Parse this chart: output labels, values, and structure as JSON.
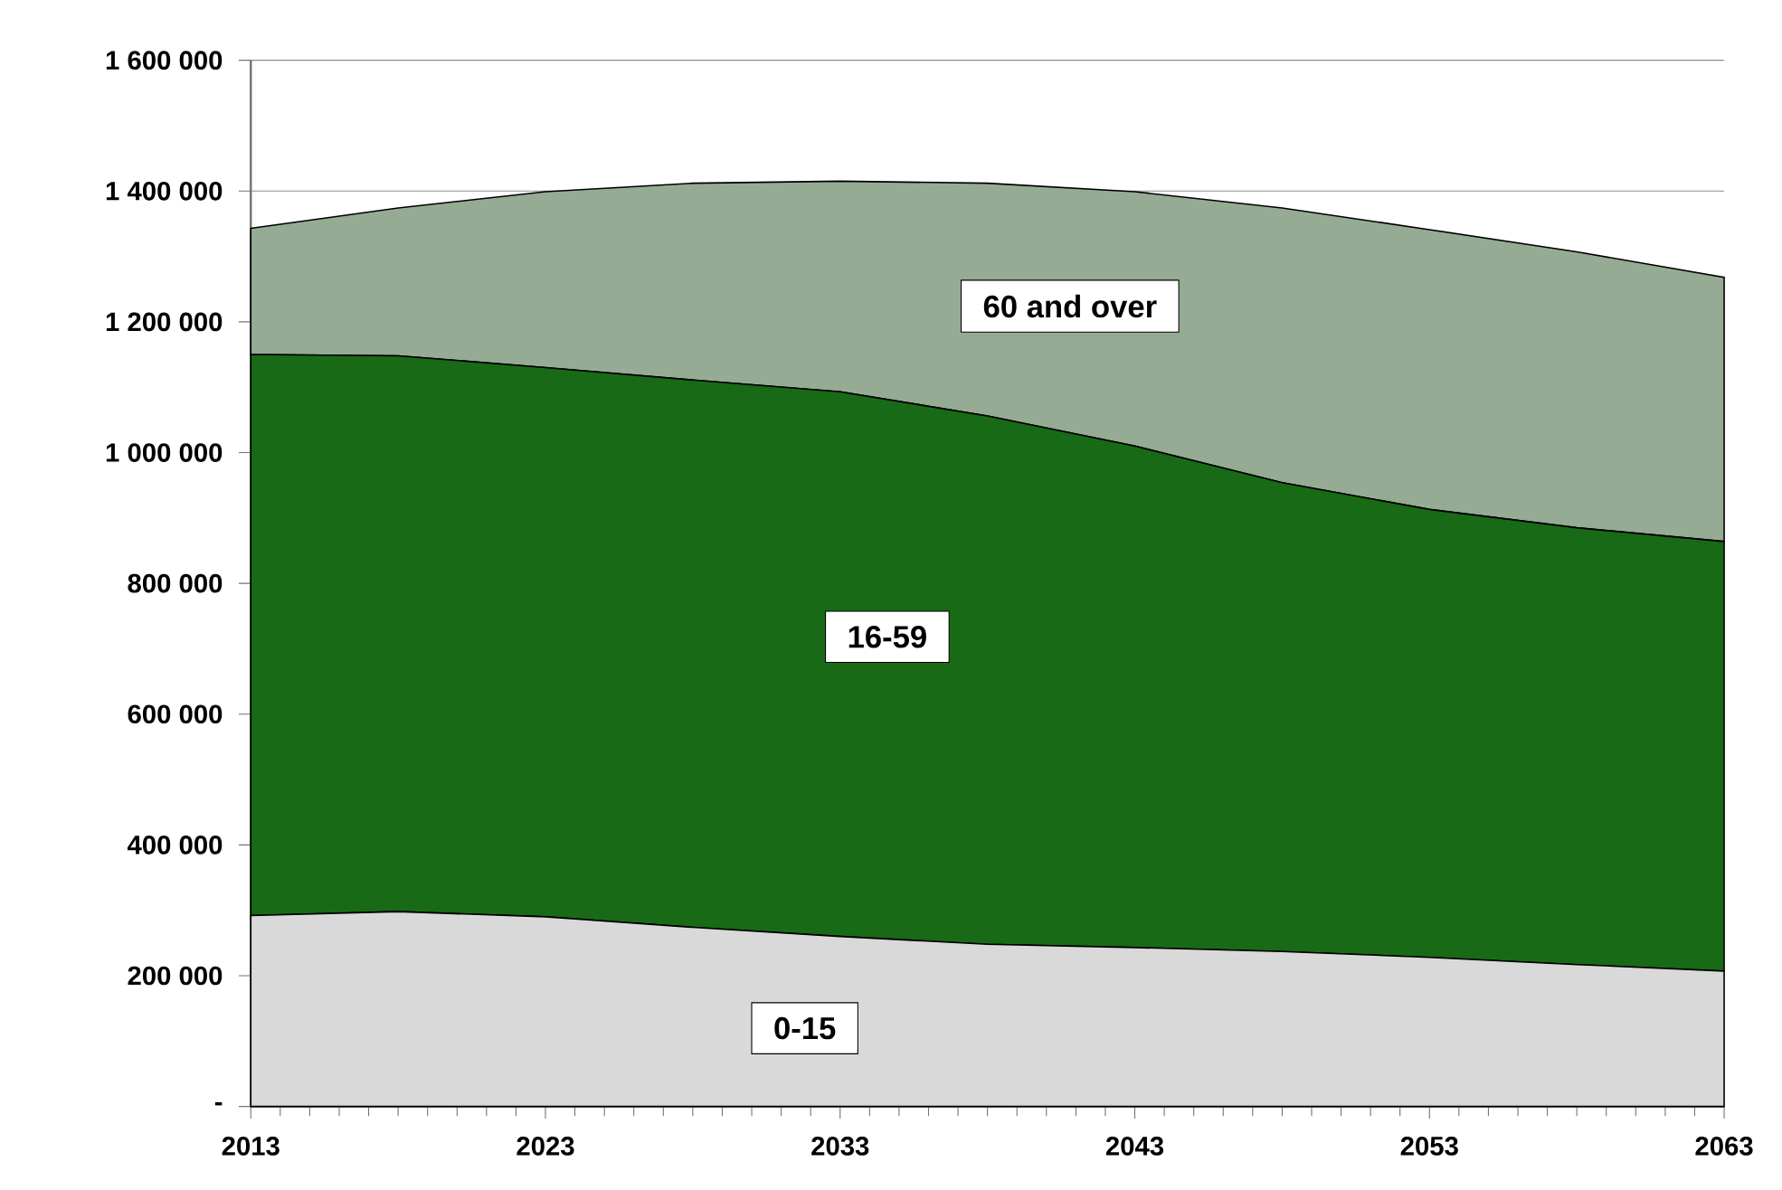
{
  "chart_data": {
    "type": "area",
    "stacked": true,
    "grid": "y",
    "legend": false,
    "x": [
      2013,
      2018,
      2023,
      2028,
      2033,
      2038,
      2043,
      2048,
      2053,
      2058,
      2063
    ],
    "xlim": [
      2013,
      2063
    ],
    "xticks": [
      2013,
      2023,
      2033,
      2043,
      2053,
      2063
    ],
    "ylim": [
      0,
      1600000
    ],
    "yticks": [
      {
        "value": 0,
        "label": "-"
      },
      {
        "value": 200000,
        "label": "200 000"
      },
      {
        "value": 400000,
        "label": "400 000"
      },
      {
        "value": 600000,
        "label": "600 000"
      },
      {
        "value": 800000,
        "label": "800 000"
      },
      {
        "value": 1000000,
        "label": "1 000 000"
      },
      {
        "value": 1200000,
        "label": "1 200 000"
      },
      {
        "value": 1400000,
        "label": "1 400 000"
      },
      {
        "value": 1600000,
        "label": "1 600 000"
      }
    ],
    "series": [
      {
        "name": "0-15",
        "color": "#d9d9d9",
        "values": [
          292000,
          298000,
          290000,
          274000,
          260000,
          248000,
          243000,
          237000,
          228000,
          217000,
          207000
        ]
      },
      {
        "name": "16-59",
        "color": "#186a16",
        "values": [
          858000,
          850000,
          840000,
          837000,
          833000,
          808000,
          767000,
          717000,
          685000,
          668000,
          657000
        ]
      },
      {
        "name": "60 and over",
        "color": "#95ab94",
        "values": [
          193000,
          226000,
          269000,
          301000,
          322000,
          356000,
          389000,
          420000,
          428000,
          422000,
          404000
        ]
      }
    ]
  }
}
